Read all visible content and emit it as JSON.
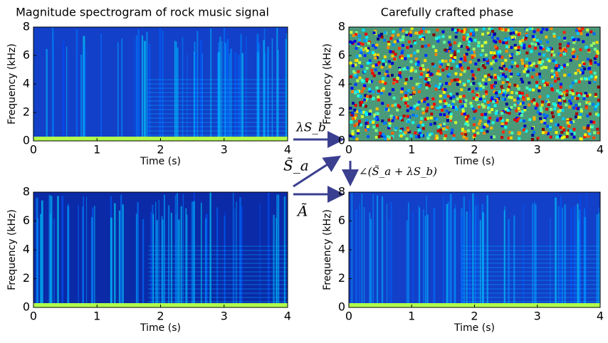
{
  "chart_data": [
    {
      "type": "spectrogram",
      "title": "Magnitude spectrogram of rock music signal",
      "xlabel": "Time (s)",
      "ylabel": "Frequency (kHz)",
      "xlim": [
        0,
        4
      ],
      "ylim": [
        0,
        8
      ],
      "xticks": [
        0,
        1,
        2,
        3,
        4
      ],
      "yticks": [
        0,
        2,
        4,
        6,
        8
      ]
    },
    {
      "type": "phase",
      "title": "Carefully crafted phase",
      "xlabel": "Time (s)",
      "ylabel": "Frequency (kHz)",
      "xlim": [
        0,
        4
      ],
      "ylim": [
        0,
        8
      ],
      "xticks": [
        0,
        1,
        2,
        3,
        4
      ],
      "yticks": [
        0,
        2,
        4,
        6,
        8
      ]
    },
    {
      "type": "spectrogram",
      "xlabel": "Time (s)",
      "ylabel": "Frequency (kHz)",
      "xlim": [
        0,
        4
      ],
      "ylim": [
        0,
        8
      ],
      "xticks": [
        0,
        1,
        2,
        3,
        4
      ],
      "yticks": [
        0,
        2,
        4,
        6,
        8
      ]
    },
    {
      "type": "spectrogram",
      "xlabel": "Time (s)",
      "ylabel": "Frequency (kHz)",
      "xlim": [
        0,
        4
      ],
      "ylim": [
        0,
        8
      ],
      "xticks": [
        0,
        1,
        2,
        3,
        4
      ],
      "yticks": [
        0,
        2,
        4,
        6,
        8
      ]
    }
  ],
  "annotations": [
    "λS_b",
    "S̃_a",
    "Ã",
    "∠(S̃_a + λS_b)"
  ]
}
